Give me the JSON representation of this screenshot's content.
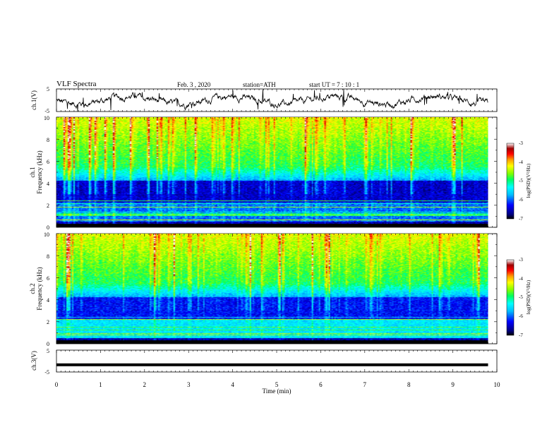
{
  "header": {
    "title": "VLF  Spectra",
    "date": "Feb. 3  , 2020",
    "station": "station=ATH",
    "start": "start  UT  =    7  : 10 : 1"
  },
  "chart_data": [
    {
      "type": "line",
      "id": "ch1-waveform",
      "ylabel": "ch.1(V)",
      "ylim": [
        -5,
        5
      ],
      "yticks": [
        "5",
        "-5"
      ],
      "x_range": [
        0,
        9.8
      ],
      "baseline_v": 0
    },
    {
      "type": "heatmap",
      "id": "ch1-spectrogram",
      "ylabel": "ch.1\nFrequency  (kHz)",
      "ylabel_top": "ch.1",
      "ylabel_bottom": "Frequency  (kHz)",
      "ylim": [
        0,
        10
      ],
      "yticks": [
        "0",
        "2",
        "4",
        "6",
        "8",
        "10"
      ],
      "x_range": [
        0,
        9.8
      ],
      "colorbar": {
        "label": "log(PSD)(V²/Hz)",
        "min": -7,
        "max": -3,
        "ticks": [
          "-3",
          "-4",
          "-5",
          "-6",
          "-7"
        ]
      }
    },
    {
      "type": "heatmap",
      "id": "ch2-spectrogram",
      "ylabel_top": "ch.2",
      "ylabel_bottom": "Frequency  (kHz)",
      "ylim": [
        0,
        10
      ],
      "yticks": [
        "0",
        "2",
        "4",
        "6",
        "8",
        "10"
      ],
      "x_range": [
        0,
        9.8
      ],
      "colorbar": {
        "label": "log(PSD)(V²/Hz)",
        "min": -7,
        "max": -3,
        "ticks": [
          "-3",
          "-4",
          "-5",
          "-6",
          "-7"
        ]
      }
    },
    {
      "type": "line",
      "id": "ch3-waveform",
      "ylabel": "ch.3(V)",
      "ylim": [
        -5,
        5
      ],
      "yticks": [
        "5",
        "-5"
      ],
      "x_range": [
        0,
        9.8
      ],
      "baseline_v": -1.7
    }
  ],
  "xaxis": {
    "label": "Time  (min)",
    "range": [
      0,
      10
    ],
    "ticks": [
      "0",
      "1",
      "2",
      "3",
      "4",
      "5",
      "6",
      "7",
      "8",
      "9",
      "10"
    ]
  },
  "colors": {
    "scale": [
      "#000000",
      "#000080",
      "#0000ff",
      "#00bfff",
      "#00ffff",
      "#00ff80",
      "#80ff00",
      "#ffff00",
      "#ffa500",
      "#ff0000",
      "#b00000",
      "#ffffff"
    ]
  }
}
